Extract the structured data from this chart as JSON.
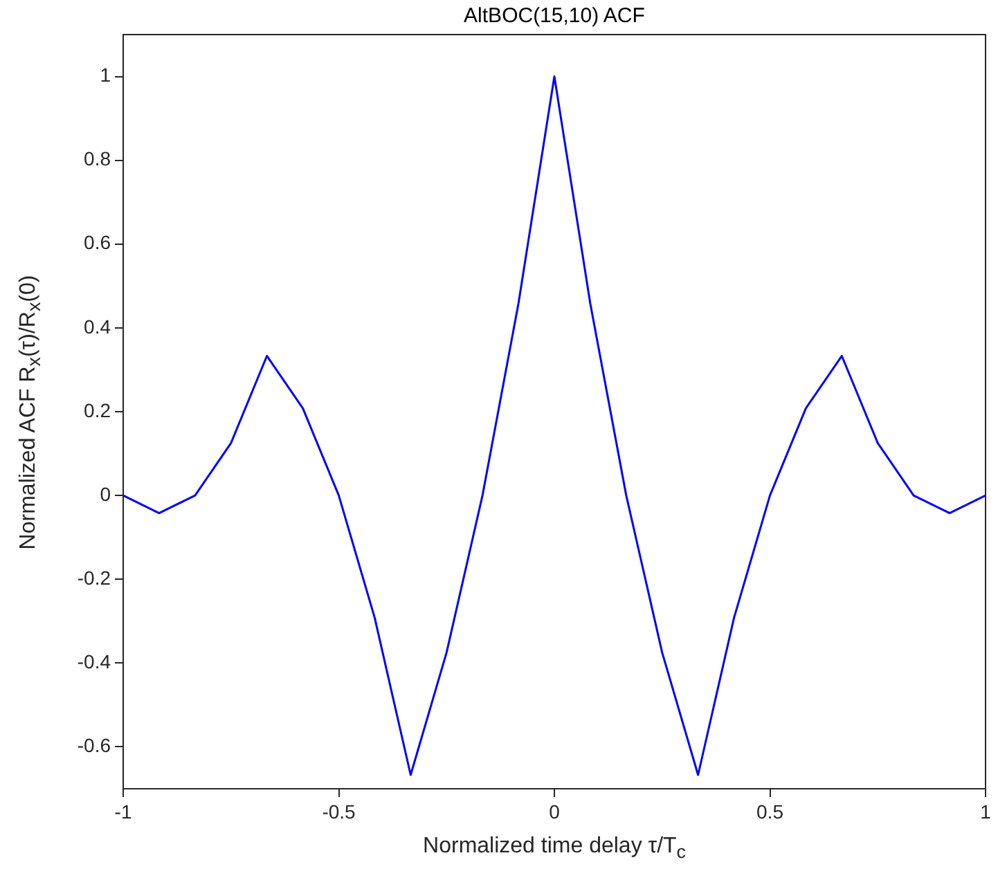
{
  "chart_data": {
    "type": "line",
    "title": "AltBOC(15,10) ACF",
    "xlabel": "Normalized time delay τ/T$_{c}$",
    "ylabel": "Normalized ACF R$_{x}$(τ)/R$_{x}$(0)",
    "x": [
      -1,
      -0.9167,
      -0.8333,
      -0.75,
      -0.6667,
      -0.5833,
      -0.5,
      -0.4167,
      -0.3333,
      -0.25,
      -0.1667,
      -0.0833,
      0,
      0.0833,
      0.1667,
      0.25,
      0.3333,
      0.4167,
      0.5,
      0.5833,
      0.6667,
      0.75,
      0.8333,
      0.9167,
      1
    ],
    "series": [
      {
        "color": "#0000ff",
        "values": [
          0,
          -0.042,
          0,
          0.125,
          0.333,
          0.208,
          0,
          -0.292,
          -0.667,
          -0.375,
          0,
          0.458,
          1,
          0.458,
          0,
          -0.375,
          -0.667,
          -0.292,
          0,
          0.208,
          0.333,
          0.125,
          0,
          -0.042,
          0
        ]
      }
    ],
    "xlim": [
      -1,
      1
    ],
    "xticks": [
      -1,
      -0.5,
      0,
      0.5,
      1
    ],
    "ylim": [
      -0.7,
      1.1
    ],
    "yticks": [
      -0.6,
      -0.4,
      -0.2,
      0,
      0.2,
      0.4,
      0.6,
      0.8,
      1
    ],
    "grid": false,
    "legend": false,
    "marker": "none",
    "line_style": "solid"
  }
}
